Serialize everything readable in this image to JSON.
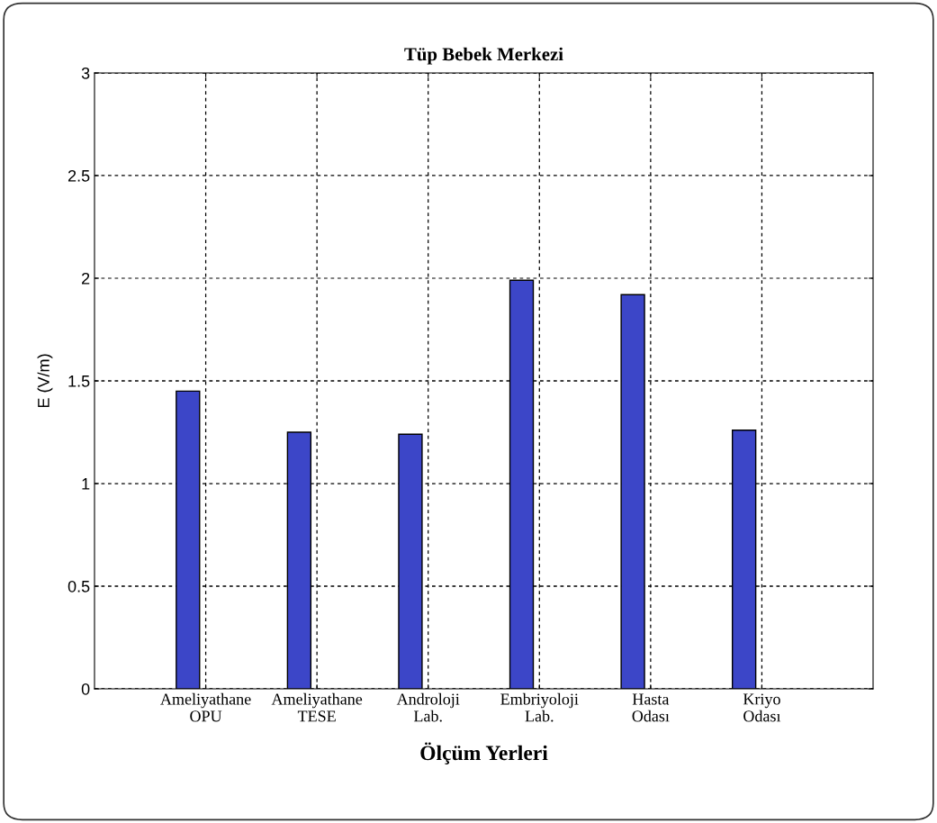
{
  "chart_data": {
    "type": "bar",
    "title": "Tüp Bebek Merkezi",
    "xlabel": "Ölçüm Yerleri",
    "ylabel": "E (V/m)",
    "categories": [
      "Ameliyathane\nOPU",
      "Ameliyathane\nTESE",
      "Androloji\nLab.",
      "Embriyoloji\nLab.",
      "Hasta\nOdası",
      "Kriyo\nOdası"
    ],
    "values": [
      1.45,
      1.25,
      1.24,
      1.99,
      1.92,
      1.26
    ],
    "color": "#3c46c8",
    "ylim": [
      0,
      3
    ],
    "yticks": [
      0,
      0.5,
      1,
      1.5,
      2,
      2.5,
      3
    ],
    "grid": true
  }
}
